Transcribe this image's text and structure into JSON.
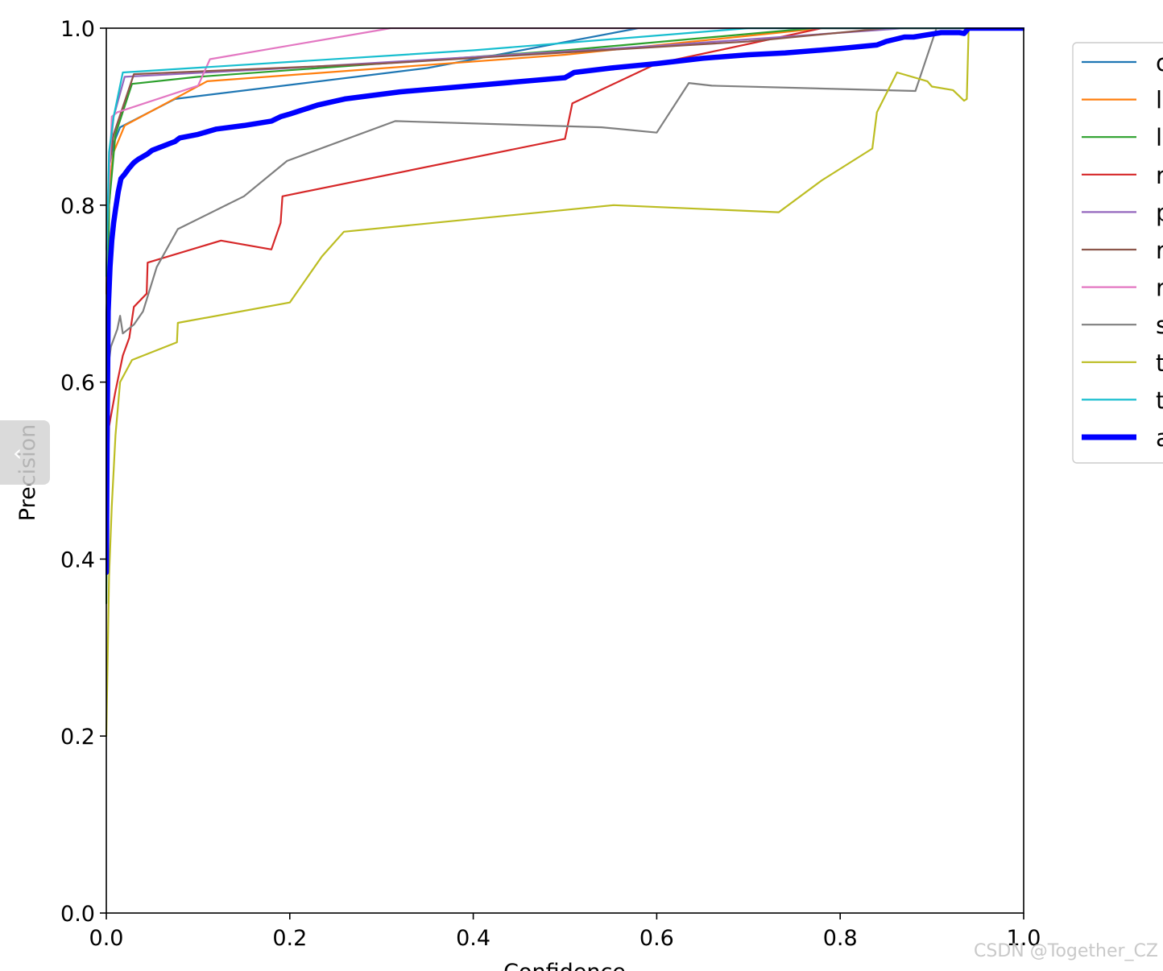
{
  "chart_data": {
    "type": "line",
    "title": "",
    "xlabel": "Confidence",
    "ylabel": "Precision",
    "xlim": [
      0.0,
      1.0
    ],
    "ylim": [
      0.0,
      1.0
    ],
    "xticks": [
      "0.0",
      "0.2",
      "0.4",
      "0.6",
      "0.8",
      "1.0"
    ],
    "yticks": [
      "0.0",
      "0.2",
      "0.4",
      "0.6",
      "0.8",
      "1.0"
    ],
    "grid": false,
    "legend_position": "right, outside plot (cropped)",
    "series": [
      {
        "name": "c",
        "color": "#1f77b4",
        "bold": false,
        "x": [
          0.0,
          0.003,
          0.008,
          0.015,
          0.075,
          0.35,
          0.58,
          1.0
        ],
        "y": [
          0.63,
          0.8,
          0.87,
          0.888,
          0.92,
          0.955,
          1.0,
          1.0
        ]
      },
      {
        "name": "l",
        "color": "#ff7f0e",
        "bold": false,
        "x": [
          0.0,
          0.003,
          0.008,
          0.02,
          0.11,
          0.5,
          0.78,
          1.0
        ],
        "y": [
          0.7,
          0.82,
          0.86,
          0.89,
          0.94,
          0.97,
          1.0,
          1.0
        ]
      },
      {
        "name": "l",
        "color": "#2ca02c",
        "bold": false,
        "x": [
          0.0,
          0.003,
          0.01,
          0.028,
          0.1,
          0.5,
          0.77,
          1.0
        ],
        "y": [
          0.35,
          0.8,
          0.88,
          0.937,
          0.945,
          0.975,
          1.0,
          1.0
        ]
      },
      {
        "name": "r",
        "color": "#d62728",
        "bold": false,
        "x": [
          0.0,
          0.003,
          0.01,
          0.018,
          0.025,
          0.03,
          0.044,
          0.045,
          0.125,
          0.18,
          0.19,
          0.192,
          0.5,
          0.508,
          0.6,
          0.78,
          1.0
        ],
        "y": [
          0.42,
          0.55,
          0.59,
          0.63,
          0.65,
          0.685,
          0.7,
          0.735,
          0.76,
          0.75,
          0.78,
          0.81,
          0.875,
          0.915,
          0.96,
          1.0,
          1.0
        ]
      },
      {
        "name": "p",
        "color": "#9467bd",
        "bold": false,
        "x": [
          0.0,
          0.003,
          0.008,
          0.02,
          0.2,
          0.6,
          0.87,
          1.0
        ],
        "y": [
          0.72,
          0.85,
          0.9,
          0.945,
          0.955,
          0.98,
          1.0,
          1.0
        ]
      },
      {
        "name": "r",
        "color": "#8c564b",
        "bold": false,
        "x": [
          0.0,
          0.003,
          0.008,
          0.03,
          0.3,
          0.7,
          0.85,
          1.0
        ],
        "y": [
          0.72,
          0.84,
          0.88,
          0.948,
          0.96,
          0.985,
          1.0,
          1.0
        ]
      },
      {
        "name": "r",
        "color": "#e377c2",
        "bold": false,
        "x": [
          0.0,
          0.006,
          0.012,
          0.1,
          0.113,
          0.31,
          1.0
        ],
        "y": [
          0.75,
          0.9,
          0.905,
          0.935,
          0.965,
          1.0,
          1.0
        ]
      },
      {
        "name": "s",
        "color": "#7f7f7f",
        "bold": false,
        "x": [
          0.0,
          0.005,
          0.012,
          0.015,
          0.018,
          0.03,
          0.04,
          0.055,
          0.078,
          0.15,
          0.197,
          0.315,
          0.54,
          0.6,
          0.635,
          0.66,
          0.882,
          0.905,
          1.0
        ],
        "y": [
          0.6,
          0.64,
          0.66,
          0.675,
          0.655,
          0.665,
          0.68,
          0.73,
          0.773,
          0.81,
          0.85,
          0.895,
          0.888,
          0.882,
          0.938,
          0.935,
          0.929,
          1.0,
          1.0
        ]
      },
      {
        "name": "t",
        "color": "#bcbd22",
        "bold": false,
        "x": [
          0.0,
          0.003,
          0.006,
          0.01,
          0.015,
          0.028,
          0.077,
          0.078,
          0.2,
          0.235,
          0.259,
          0.553,
          0.733,
          0.78,
          0.835,
          0.84,
          0.862,
          0.895,
          0.9,
          0.923,
          0.935,
          0.938,
          0.94,
          1.0
        ],
        "y": [
          0.2,
          0.38,
          0.46,
          0.54,
          0.6,
          0.625,
          0.645,
          0.667,
          0.69,
          0.742,
          0.77,
          0.8,
          0.792,
          0.828,
          0.864,
          0.905,
          0.95,
          0.94,
          0.934,
          0.93,
          0.918,
          0.92,
          1.0,
          1.0
        ]
      },
      {
        "name": "t",
        "color": "#17becf",
        "bold": false,
        "x": [
          0.0,
          0.003,
          0.008,
          0.018,
          0.4,
          0.7,
          1.0
        ],
        "y": [
          0.72,
          0.86,
          0.9,
          0.95,
          0.975,
          1.0,
          1.0
        ]
      },
      {
        "name": "a",
        "color": "#0000ff",
        "bold": true,
        "x": [
          0.0,
          0.001,
          0.002,
          0.004,
          0.006,
          0.008,
          0.01,
          0.013,
          0.016,
          0.02,
          0.025,
          0.03,
          0.035,
          0.04,
          0.045,
          0.05,
          0.06,
          0.07,
          0.075,
          0.08,
          0.1,
          0.12,
          0.15,
          0.18,
          0.19,
          0.2,
          0.23,
          0.26,
          0.32,
          0.4,
          0.5,
          0.51,
          0.55,
          0.6,
          0.65,
          0.7,
          0.74,
          0.8,
          0.84,
          0.85,
          0.87,
          0.88,
          0.91,
          0.93,
          0.935,
          0.94,
          1.0
        ],
        "y": [
          0.385,
          0.55,
          0.68,
          0.73,
          0.76,
          0.78,
          0.795,
          0.815,
          0.83,
          0.835,
          0.842,
          0.848,
          0.852,
          0.855,
          0.858,
          0.862,
          0.866,
          0.87,
          0.872,
          0.876,
          0.88,
          0.886,
          0.89,
          0.895,
          0.9,
          0.903,
          0.913,
          0.92,
          0.928,
          0.935,
          0.944,
          0.95,
          0.955,
          0.96,
          0.966,
          0.97,
          0.972,
          0.977,
          0.981,
          0.985,
          0.99,
          0.99,
          0.995,
          0.995,
          0.994,
          1.0,
          1.0
        ]
      }
    ]
  },
  "watermark": "CSDN @Together_CZ"
}
